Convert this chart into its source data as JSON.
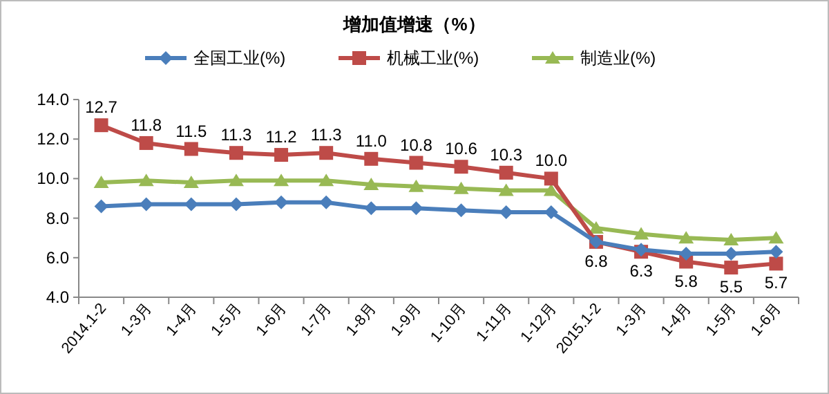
{
  "chart_data": {
    "type": "line",
    "title": "增加值增速（%）",
    "categories": [
      "2014.1-2",
      "1-3月",
      "1-4月",
      "1-5月",
      "1-6月",
      "1-7月",
      "1-8月",
      "1-9月",
      "1-10月",
      "1-11月",
      "1-12月",
      "2015.1-2",
      "1-3月",
      "1-4月",
      "1-5月",
      "1-6月"
    ],
    "series": [
      {
        "name": "全国工业(%)",
        "color": "#4a7ebb",
        "marker": "diamond",
        "values": [
          8.6,
          8.7,
          8.7,
          8.7,
          8.8,
          8.8,
          8.5,
          8.5,
          8.4,
          8.3,
          8.3,
          6.8,
          6.4,
          6.2,
          6.2,
          6.3
        ]
      },
      {
        "name": "机械工业(%)",
        "color": "#be4b48",
        "marker": "square",
        "values": [
          12.7,
          11.8,
          11.5,
          11.3,
          11.2,
          11.3,
          11.0,
          10.8,
          10.6,
          10.3,
          10.0,
          6.8,
          6.3,
          5.8,
          5.5,
          5.7
        ],
        "value_labels": [
          "12.7",
          "11.8",
          "11.5",
          "11.3",
          "11.2",
          "11.3",
          "11.0",
          "10.8",
          "10.6",
          "10.3",
          "10.0",
          "6.8",
          "6.3",
          "5.8",
          "5.5",
          "5.7"
        ]
      },
      {
        "name": "制造业(%)",
        "color": "#98b954",
        "marker": "triangle",
        "values": [
          9.8,
          9.9,
          9.8,
          9.9,
          9.9,
          9.9,
          9.7,
          9.6,
          9.5,
          9.4,
          9.4,
          7.5,
          7.2,
          7.0,
          6.9,
          7.0
        ]
      }
    ],
    "ylim": [
      4,
      14
    ],
    "yticks": [
      {
        "value": 4,
        "label": "4.0"
      },
      {
        "value": 6,
        "label": "6.0"
      },
      {
        "value": 8,
        "label": "8.0"
      },
      {
        "value": 10,
        "label": "10.0"
      },
      {
        "value": 12,
        "label": "12.0"
      },
      {
        "value": 14,
        "label": "14.0"
      }
    ],
    "grid": false,
    "legend": "top"
  }
}
